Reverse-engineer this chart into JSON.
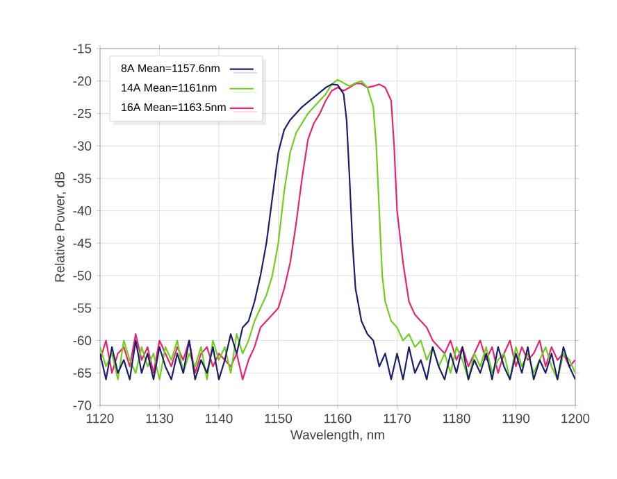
{
  "chart_data": {
    "type": "line",
    "xlabel": "Wavelength, nm",
    "ylabel": "Relative Power, dB",
    "xlim": [
      1120,
      1200
    ],
    "xticks": [
      1120,
      1130,
      1140,
      1150,
      1160,
      1170,
      1180,
      1190,
      1200
    ],
    "ylim": [
      -70,
      -15
    ],
    "yticks": [
      -70,
      -65,
      -60,
      -55,
      -50,
      -45,
      -40,
      -35,
      -30,
      -25,
      -20,
      -15
    ],
    "grid": true,
    "legend": "top left",
    "marker": "none",
    "line_style": "solid",
    "series": [
      {
        "name": "8A Mean=1157.6nm",
        "color": "#1c1c6e",
        "x": [
          1120,
          1121,
          1122,
          1123,
          1124,
          1125,
          1126,
          1127,
          1128,
          1129,
          1130,
          1131,
          1132,
          1133,
          1134,
          1135,
          1136,
          1137,
          1138,
          1139,
          1140,
          1141,
          1142,
          1143,
          1144,
          1145,
          1146,
          1147,
          1148,
          1149,
          1150,
          1151,
          1152,
          1154,
          1156,
          1158,
          1159,
          1160,
          1161,
          1161.5,
          1162,
          1162.5,
          1163,
          1164,
          1165,
          1166,
          1167,
          1168,
          1169,
          1170,
          1171,
          1172,
          1173,
          1174,
          1175,
          1176,
          1177,
          1178,
          1179,
          1180,
          1181,
          1182,
          1183,
          1184,
          1185,
          1186,
          1187,
          1188,
          1189,
          1190,
          1191,
          1192,
          1193,
          1194,
          1195,
          1196,
          1197,
          1198,
          1199,
          1200
        ],
        "values": [
          -62,
          -66,
          -61,
          -65,
          -63,
          -66,
          -60,
          -65,
          -62,
          -66,
          -61,
          -64,
          -66,
          -62,
          -65,
          -60,
          -66,
          -63,
          -65,
          -61,
          -66,
          -63,
          -59,
          -62,
          -58,
          -57,
          -54,
          -50,
          -45,
          -38,
          -31,
          -27.5,
          -26,
          -24,
          -22.5,
          -21,
          -20.5,
          -20.6,
          -22,
          -26,
          -35,
          -45,
          -52,
          -57,
          -59,
          -60,
          -64,
          -62,
          -66,
          -62,
          -66,
          -61,
          -65,
          -63,
          -66,
          -61,
          -64,
          -66,
          -62,
          -65,
          -61,
          -66,
          -63,
          -65,
          -62,
          -66,
          -61,
          -64,
          -66,
          -62,
          -65,
          -61,
          -66,
          -63,
          -65,
          -62,
          -66,
          -61,
          -64,
          -66
        ]
      },
      {
        "name": "14A Mean=1161nm",
        "color": "#6fcf1e",
        "x": [
          1120,
          1121,
          1122,
          1123,
          1124,
          1125,
          1126,
          1127,
          1128,
          1129,
          1130,
          1131,
          1132,
          1133,
          1134,
          1135,
          1136,
          1137,
          1138,
          1139,
          1140,
          1141,
          1142,
          1143,
          1144,
          1145,
          1146,
          1147,
          1148,
          1149,
          1150,
          1151,
          1152,
          1153,
          1155,
          1157,
          1158,
          1159,
          1160,
          1161,
          1162,
          1163,
          1164,
          1165,
          1166,
          1166.5,
          1167,
          1167.5,
          1168,
          1169,
          1170,
          1171,
          1172,
          1173,
          1174,
          1175,
          1176,
          1177,
          1178,
          1179,
          1180,
          1181,
          1182,
          1183,
          1184,
          1185,
          1186,
          1187,
          1188,
          1189,
          1190,
          1191,
          1192,
          1193,
          1194,
          1195,
          1196,
          1197,
          1198,
          1199,
          1200
        ],
        "values": [
          -61,
          -64,
          -62,
          -66,
          -60,
          -63,
          -65,
          -61,
          -64,
          -62,
          -66,
          -61,
          -63,
          -60,
          -65,
          -62,
          -64,
          -61,
          -66,
          -60,
          -63,
          -61,
          -65,
          -59,
          -62,
          -60,
          -57,
          -55,
          -53,
          -50,
          -45,
          -37,
          -31,
          -28,
          -25,
          -23,
          -22,
          -20.5,
          -19.8,
          -20.3,
          -20.8,
          -20.3,
          -20,
          -21,
          -24,
          -30,
          -40,
          -50,
          -54,
          -57,
          -58,
          -60,
          -59,
          -61,
          -60,
          -63,
          -61,
          -64,
          -62,
          -65,
          -61,
          -63,
          -66,
          -62,
          -64,
          -61,
          -65,
          -63,
          -62,
          -66,
          -61,
          -64,
          -62,
          -65,
          -63,
          -61,
          -64,
          -66,
          -62,
          -63,
          -65
        ]
      },
      {
        "name": "16A Mean=1163.5nm",
        "color": "#e8246e",
        "x": [
          1120,
          1121,
          1122,
          1123,
          1124,
          1125,
          1126,
          1127,
          1128,
          1129,
          1130,
          1131,
          1132,
          1133,
          1134,
          1135,
          1136,
          1137,
          1138,
          1139,
          1140,
          1141,
          1142,
          1143,
          1144,
          1145,
          1146,
          1147,
          1148,
          1149,
          1150,
          1151,
          1152,
          1153,
          1154,
          1155,
          1156,
          1157,
          1158,
          1159,
          1160,
          1161,
          1162,
          1163,
          1164,
          1165,
          1166,
          1167,
          1168,
          1169,
          1169.5,
          1170,
          1171,
          1172,
          1173,
          1174,
          1175,
          1176,
          1177,
          1178,
          1179,
          1180,
          1181,
          1182,
          1183,
          1184,
          1185,
          1186,
          1187,
          1188,
          1189,
          1190,
          1191,
          1192,
          1193,
          1194,
          1195,
          1196,
          1197,
          1198,
          1199,
          1200
        ],
        "values": [
          -63,
          -60,
          -65,
          -62,
          -61,
          -64,
          -59,
          -63,
          -61,
          -65,
          -60,
          -62,
          -64,
          -61,
          -63,
          -60,
          -65,
          -62,
          -61,
          -64,
          -62,
          -63,
          -64,
          -62,
          -66,
          -63,
          -61,
          -58,
          -57,
          -56,
          -55,
          -52,
          -48,
          -42,
          -35,
          -29,
          -26.5,
          -25,
          -23,
          -21.5,
          -21,
          -21.5,
          -21,
          -20.4,
          -20.4,
          -21,
          -20.8,
          -20.5,
          -21,
          -23,
          -30,
          -40,
          -48,
          -54,
          -56,
          -57,
          -58,
          -60,
          -61,
          -62,
          -60,
          -63,
          -61,
          -64,
          -62,
          -60,
          -63,
          -61,
          -65,
          -62,
          -60,
          -64,
          -61,
          -63,
          -62,
          -60,
          -64,
          -61,
          -63,
          -62,
          -64,
          -63
        ]
      }
    ]
  }
}
